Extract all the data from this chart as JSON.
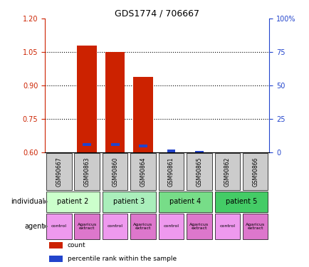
{
  "title": "GDS1774 / 706667",
  "samples": [
    "GSM90667",
    "GSM90863",
    "GSM90860",
    "GSM90864",
    "GSM90861",
    "GSM90865",
    "GSM90862",
    "GSM90866"
  ],
  "red_values": [
    0.0,
    1.08,
    1.05,
    0.94,
    0.0,
    0.0,
    0.0,
    0.0
  ],
  "blue_values": [
    0.0,
    0.635,
    0.635,
    0.63,
    0.608,
    0.601,
    0.0,
    0.0
  ],
  "ylim_left": [
    0.6,
    1.2
  ],
  "ylim_right": [
    0,
    100
  ],
  "yticks_left": [
    0.6,
    0.75,
    0.9,
    1.05,
    1.2
  ],
  "yticks_right": [
    0,
    25,
    50,
    75,
    100
  ],
  "individuals": [
    {
      "label": "patient 2",
      "cols": [
        0,
        1
      ],
      "color": "#ccffcc"
    },
    {
      "label": "patient 3",
      "cols": [
        2,
        3
      ],
      "color": "#aaeebb"
    },
    {
      "label": "patient 4",
      "cols": [
        4,
        5
      ],
      "color": "#77dd88"
    },
    {
      "label": "patient 5",
      "cols": [
        6,
        7
      ],
      "color": "#44cc66"
    }
  ],
  "agents": [
    {
      "label": "control",
      "col": 0,
      "color": "#ee99ee"
    },
    {
      "label": "Agaricus\nextract",
      "col": 1,
      "color": "#dd77cc"
    },
    {
      "label": "control",
      "col": 2,
      "color": "#ee99ee"
    },
    {
      "label": "Agaricus\nextract",
      "col": 3,
      "color": "#dd77cc"
    },
    {
      "label": "control",
      "col": 4,
      "color": "#ee99ee"
    },
    {
      "label": "Agaricus\nextract",
      "col": 5,
      "color": "#dd77cc"
    },
    {
      "label": "control",
      "col": 6,
      "color": "#ee99ee"
    },
    {
      "label": "Agaricus\nextract",
      "col": 7,
      "color": "#dd77cc"
    }
  ],
  "bar_color_red": "#cc2200",
  "bar_color_blue": "#2244cc",
  "bar_width": 0.7,
  "blue_bar_width": 0.3,
  "background_color": "#ffffff",
  "sample_bg_color": "#cccccc",
  "left_axis_color": "#cc2200",
  "right_axis_color": "#2244cc",
  "legend_items": [
    {
      "color": "#cc2200",
      "label": "count"
    },
    {
      "color": "#2244cc",
      "label": "percentile rank within the sample"
    }
  ]
}
